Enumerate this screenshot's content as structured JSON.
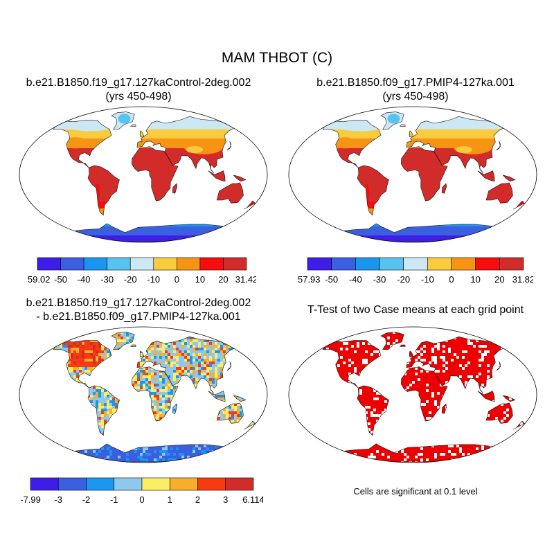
{
  "title": "MAM THBOT (C)",
  "panels": [
    {
      "id": "case1",
      "title_lines": [
        "b.e21.B1850.f19_g17.127kaControl-2deg.002",
        "(yrs 450-498)"
      ],
      "colorbar": {
        "colors": [
          "#3f1de8",
          "#3a5fe0",
          "#1b96f0",
          "#58c3f0",
          "#cde8f5",
          "#f8cc3e",
          "#f79413",
          "#f70d0d",
          "#d22c2a"
        ],
        "labels": [
          "-59.02",
          "-50",
          "-40",
          "-30",
          "-20",
          "-10",
          "0",
          "10",
          "20",
          "31.42"
        ]
      }
    },
    {
      "id": "case2",
      "title_lines": [
        "b.e21.B1850.f09_g17.PMIP4-127ka.001",
        "(yrs 450-498)"
      ],
      "colorbar": {
        "colors": [
          "#3f1de8",
          "#3a5fe0",
          "#1b96f0",
          "#58c3f0",
          "#cde8f5",
          "#f8cc3e",
          "#f79413",
          "#f70d0d",
          "#d22c2a"
        ],
        "labels": [
          "-57.93",
          "-50",
          "-40",
          "-30",
          "-20",
          "-10",
          "0",
          "10",
          "20",
          "31.82"
        ]
      }
    },
    {
      "id": "difference",
      "title_lines": [
        "b.e21.B1850.f19_g17.127kaControl-2deg.002",
        "- b.e21.B1850.f09_g17.PMIP4-127ka.001"
      ],
      "colorbar": {
        "colors": [
          "#3f1de8",
          "#3a5fe0",
          "#1b96f0",
          "#8fc8ee",
          "#fbee66",
          "#f8ae2a",
          "#f73a10",
          "#d22c2a"
        ],
        "labels": [
          "-7.99",
          "-3",
          "-2",
          "-1",
          "0",
          "1",
          "2",
          "3",
          "6.114"
        ]
      }
    },
    {
      "id": "ttest",
      "title_lines": [
        "T-Test of two Case means at each grid point"
      ],
      "note": "Cells are significant at 0.1 level",
      "significant_color": "#ee0000"
    }
  ]
}
